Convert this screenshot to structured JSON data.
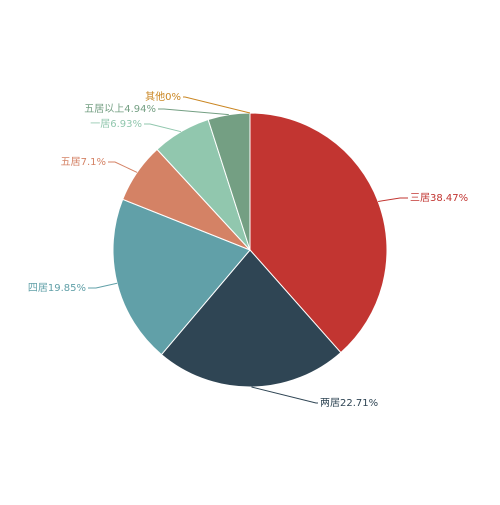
{
  "chart_data": {
    "type": "pie",
    "title": "",
    "slices": [
      {
        "label": "三居38.47%",
        "value": 38.47,
        "color": "#c23531"
      },
      {
        "label": "两居22.71%",
        "value": 22.71,
        "color": "#2f4554"
      },
      {
        "label": "四居19.85%",
        "value": 19.85,
        "color": "#61a0a8"
      },
      {
        "label": "五居7.1%",
        "value": 7.1,
        "color": "#d48265"
      },
      {
        "label": "一居6.93%",
        "value": 6.93,
        "color": "#91c7ae"
      },
      {
        "label": "五居以上4.94%",
        "value": 4.94,
        "color": "#749f83"
      },
      {
        "label": "其他0%",
        "value": 0,
        "color": "#ca8622"
      }
    ],
    "start_angle": "top",
    "direction": "clockwise",
    "legend": "none"
  }
}
